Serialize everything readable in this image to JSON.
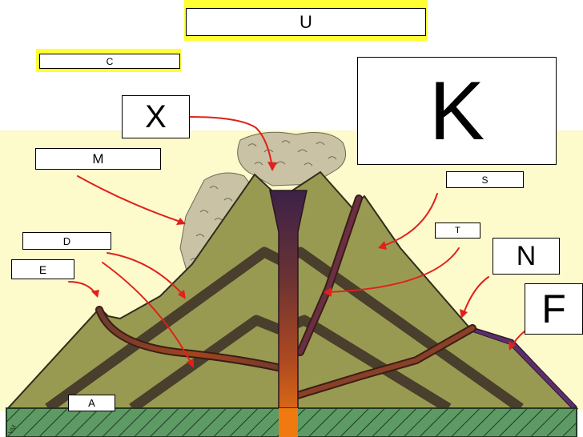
{
  "colors": {
    "sky_band": "#fdfacb",
    "mountain": "#999a52",
    "lava_layer": "#4a3e2c",
    "ground": "#5d9a64",
    "highlight": "#ffff33",
    "arrow": "#e0201c",
    "smoke": "#c9c2a4"
  },
  "labels": {
    "U": "U",
    "C": "C",
    "K": "K",
    "X": "X",
    "M": "M",
    "S": "S",
    "T": "T",
    "N": "N",
    "D": "D",
    "E": "E",
    "F": "F",
    "A": "A"
  }
}
